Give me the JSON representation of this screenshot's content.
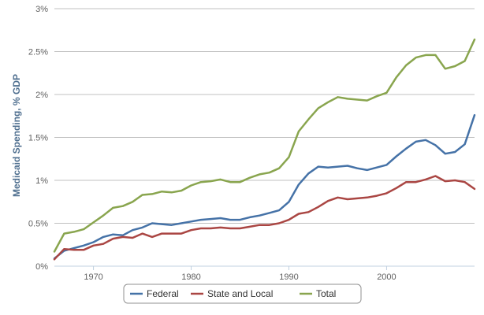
{
  "chart_data": {
    "type": "line",
    "title": "",
    "xlabel": "",
    "ylabel": "Medicaid Spending, % GDP",
    "xlim": [
      1966,
      2009
    ],
    "ylim": [
      0,
      3
    ],
    "x_ticks": [
      "1970",
      "1980",
      "1990",
      "2000"
    ],
    "y_ticks": [
      "0%",
      "0.5%",
      "1%",
      "1.5%",
      "2%",
      "2.5%",
      "3%"
    ],
    "grid": "horizontal",
    "legend_position": "bottom-center",
    "x": [
      1966,
      1967,
      1968,
      1969,
      1970,
      1971,
      1972,
      1973,
      1974,
      1975,
      1976,
      1977,
      1978,
      1979,
      1980,
      1981,
      1982,
      1983,
      1984,
      1985,
      1986,
      1987,
      1988,
      1989,
      1990,
      1991,
      1992,
      1993,
      1994,
      1995,
      1996,
      1997,
      1998,
      1999,
      2000,
      2001,
      2002,
      2003,
      2004,
      2005,
      2006,
      2007,
      2008,
      2009
    ],
    "series": [
      {
        "name": "Federal",
        "color": "#4572a7",
        "values": [
          0.09,
          0.18,
          0.21,
          0.24,
          0.28,
          0.34,
          0.37,
          0.36,
          0.42,
          0.45,
          0.5,
          0.49,
          0.48,
          0.5,
          0.52,
          0.54,
          0.55,
          0.56,
          0.54,
          0.54,
          0.57,
          0.59,
          0.62,
          0.65,
          0.75,
          0.95,
          1.08,
          1.16,
          1.15,
          1.16,
          1.17,
          1.14,
          1.12,
          1.15,
          1.18,
          1.28,
          1.37,
          1.45,
          1.47,
          1.41,
          1.31,
          1.33,
          1.42,
          1.76
        ]
      },
      {
        "name": "State and Local",
        "color": "#aa4643",
        "values": [
          0.08,
          0.2,
          0.19,
          0.19,
          0.24,
          0.26,
          0.32,
          0.34,
          0.33,
          0.38,
          0.34,
          0.38,
          0.38,
          0.38,
          0.42,
          0.44,
          0.44,
          0.45,
          0.44,
          0.44,
          0.46,
          0.48,
          0.48,
          0.5,
          0.54,
          0.61,
          0.63,
          0.69,
          0.76,
          0.8,
          0.78,
          0.79,
          0.8,
          0.82,
          0.85,
          0.91,
          0.98,
          0.98,
          1.01,
          1.05,
          0.99,
          1.0,
          0.98,
          0.9
        ]
      },
      {
        "name": "Total",
        "color": "#89a54e",
        "values": [
          0.17,
          0.38,
          0.4,
          0.43,
          0.51,
          0.59,
          0.68,
          0.7,
          0.75,
          0.83,
          0.84,
          0.87,
          0.86,
          0.88,
          0.94,
          0.98,
          0.99,
          1.01,
          0.98,
          0.98,
          1.03,
          1.07,
          1.09,
          1.14,
          1.27,
          1.57,
          1.71,
          1.84,
          1.91,
          1.97,
          1.95,
          1.94,
          1.93,
          1.98,
          2.02,
          2.2,
          2.34,
          2.43,
          2.46,
          2.46,
          2.3,
          2.33,
          2.39,
          2.64
        ]
      }
    ]
  }
}
